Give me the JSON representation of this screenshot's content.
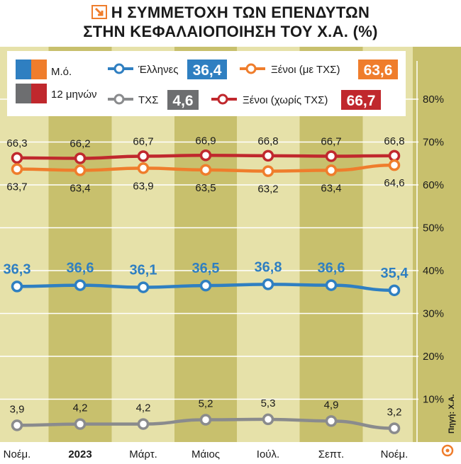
{
  "title": {
    "icon": "arrow-down-right-icon",
    "line1": "Η ΣΥΜΜΕΤΟΧΗ ΤΩΝ ΕΠΕΝΔΥΤΩΝ",
    "line2": "ΣΤΗΝ ΚΕΦΑΛΑΙΟΠΟΙΗΣΗ ΤΟΥ Χ.Α. (%)"
  },
  "legend": {
    "avg_label_1": "Μ.ό.",
    "avg_label_2": "12 μηνών",
    "avg_colors": [
      "#2f7fc1",
      "#6d6e70"
    ]
  },
  "source": "Πηγή: Χ.Α.",
  "colors": {
    "band_light": "#e6e1a9",
    "band_dark": "#c8c06d",
    "grid": "#ffffff",
    "axis_text": "#1a1a1a"
  },
  "chart_data": {
    "type": "line",
    "categories": [
      "Νοέμ.",
      "2023",
      "Μάρτ.",
      "Μάιος",
      "Ιούλ.",
      "Σεπτ.",
      "Νοέμ."
    ],
    "ylim": [
      0,
      85
    ],
    "yticks": [
      "10%",
      "20%",
      "30%",
      "40%",
      "50%",
      "60%",
      "70%",
      "80%"
    ],
    "grid": true,
    "series": [
      {
        "name": "Ξένοι (χωρίς ΤΧΣ)",
        "color": "#c0282d",
        "avg": "66,7",
        "values": [
          66.3,
          66.2,
          66.7,
          66.9,
          66.8,
          66.7,
          66.8
        ],
        "labels": [
          "66,3",
          "66,2",
          "66,7",
          "66,9",
          "66,8",
          "66,7",
          "66,8"
        ]
      },
      {
        "name": "Ξένοι (με ΤΧΣ)",
        "color": "#ef7d2c",
        "avg": "63,6",
        "values": [
          63.7,
          63.4,
          63.9,
          63.5,
          63.2,
          63.4,
          64.6
        ],
        "labels": [
          "63,7",
          "63,4",
          "63,9",
          "63,5",
          "63,2",
          "63,4",
          "64,6"
        ]
      },
      {
        "name": "Έλληνες",
        "color": "#2f7fc1",
        "avg": "36,4",
        "values": [
          36.3,
          36.6,
          36.1,
          36.5,
          36.8,
          36.6,
          35.4
        ],
        "labels": [
          "36,3",
          "36,6",
          "36,1",
          "36,5",
          "36,8",
          "36,6",
          "35,4"
        ]
      },
      {
        "name": "ΤΧΣ",
        "color": "#8a8b8d",
        "avg": "4,6",
        "values": [
          3.9,
          4.2,
          4.2,
          5.2,
          5.3,
          4.9,
          3.2
        ],
        "labels": [
          "3,9",
          "4,2",
          "4,2",
          "5,2",
          "5,3",
          "4,9",
          "3,2"
        ]
      }
    ]
  }
}
